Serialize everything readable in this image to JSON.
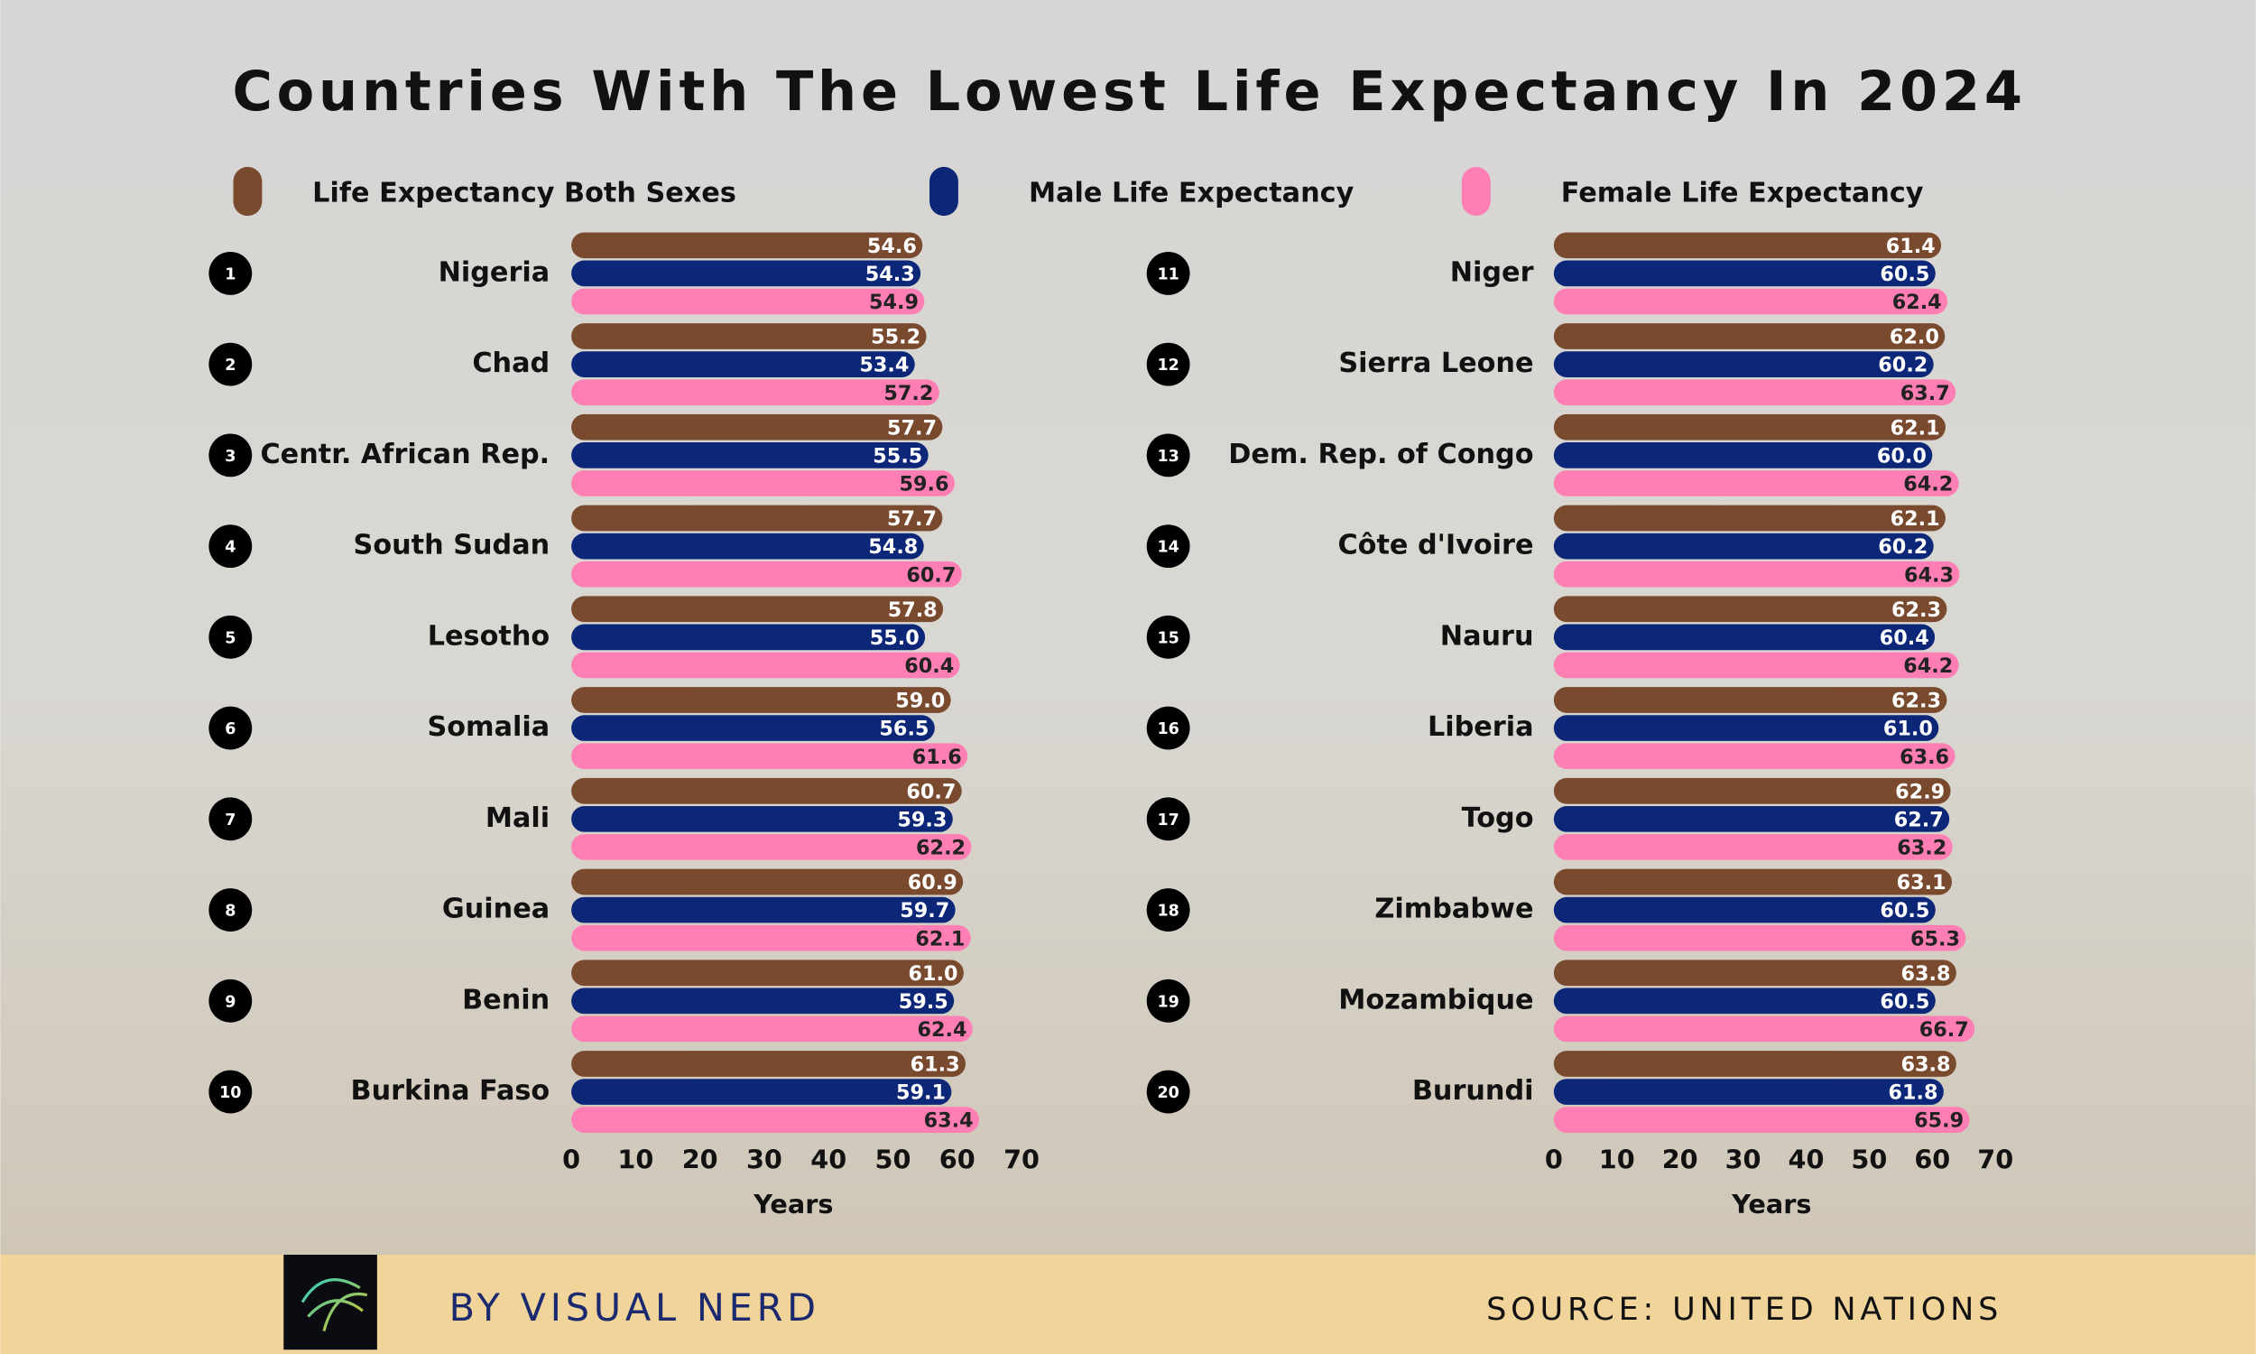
{
  "chart_data": {
    "type": "bar",
    "orientation": "horizontal",
    "title": "Countries With The Lowest Life Expectancy In 2024",
    "credit": "BY VISUAL NERD",
    "source": "SOURCE: UNITED NATIONS",
    "x_label": "Years",
    "grid": false,
    "xlim": [
      0,
      70
    ],
    "xticks": [
      0,
      10,
      20,
      30,
      40,
      50,
      60,
      70
    ],
    "ranks": [
      "1",
      "2",
      "3",
      "4",
      "5",
      "6",
      "7",
      "8",
      "9",
      "10",
      "11",
      "12",
      "13",
      "14",
      "15",
      "16",
      "17",
      "18",
      "19",
      "20"
    ],
    "categories": [
      "Nigeria",
      "Chad",
      "Centr. African Rep.",
      "South Sudan",
      "Lesotho",
      "Somalia",
      "Mali",
      "Guinea",
      "Benin",
      "Burkina Faso",
      "Niger",
      "Sierra Leone",
      "Dem. Rep. of Congo",
      "Côte d'Ivoire",
      "Nauru",
      "Liberia",
      "Togo",
      "Zimbabwe",
      "Mozambique",
      "Burundi"
    ],
    "series": [
      {
        "name": "Life Expectancy Both Sexes",
        "color": "#7a4a2e",
        "label_color": "#ffffff",
        "values": [
          54.6,
          55.2,
          57.7,
          57.7,
          57.8,
          59.0,
          60.7,
          60.9,
          61.0,
          61.3,
          61.4,
          62.0,
          62.1,
          62.1,
          62.3,
          62.3,
          62.9,
          63.1,
          63.8,
          63.8
        ],
        "value_labels": [
          "54.6",
          "55.2",
          "57.7",
          "57.7",
          "57.8",
          "59.0",
          "60.7",
          "60.9",
          "61.0",
          "61.3",
          "61.4",
          "62.0",
          "62.1",
          "62.1",
          "62.3",
          "62.3",
          "62.9",
          "63.1",
          "63.8",
          "63.8"
        ]
      },
      {
        "name": "Male Life Expectancy",
        "color": "#0c2678",
        "label_color": "#ffffff",
        "values": [
          54.3,
          53.4,
          55.5,
          54.8,
          55.0,
          56.5,
          59.3,
          59.7,
          59.5,
          59.1,
          60.5,
          60.2,
          60.0,
          60.2,
          60.4,
          61.0,
          62.7,
          60.5,
          60.5,
          61.8
        ],
        "value_labels": [
          "54.3",
          "53.4",
          "55.5",
          "54.8",
          "55.0",
          "56.5",
          "59.3",
          "59.7",
          "59.5",
          "59.1",
          "60.5",
          "60.2",
          "60.0",
          "60.2",
          "60.4",
          "61.0",
          "62.7",
          "60.5",
          "60.5",
          "61.8"
        ]
      },
      {
        "name": "Female Life Expectancy",
        "color": "#ff7eb3",
        "label_color": "#222222",
        "values": [
          54.9,
          57.2,
          59.6,
          60.7,
          60.4,
          61.6,
          62.2,
          62.1,
          62.4,
          63.4,
          62.4,
          63.7,
          64.2,
          64.3,
          64.2,
          63.6,
          63.2,
          65.3,
          66.7,
          65.9
        ],
        "value_labels": [
          "54.9",
          "57.2",
          "59.6",
          "60.7",
          "60.4",
          "61.6",
          "62.2",
          "62.1",
          "62.4",
          "63.4",
          "62.4",
          "63.7",
          "64.2",
          "64.3",
          "64.2",
          "63.6",
          "63.2",
          "65.3",
          "66.7",
          "65.9"
        ]
      }
    ]
  }
}
